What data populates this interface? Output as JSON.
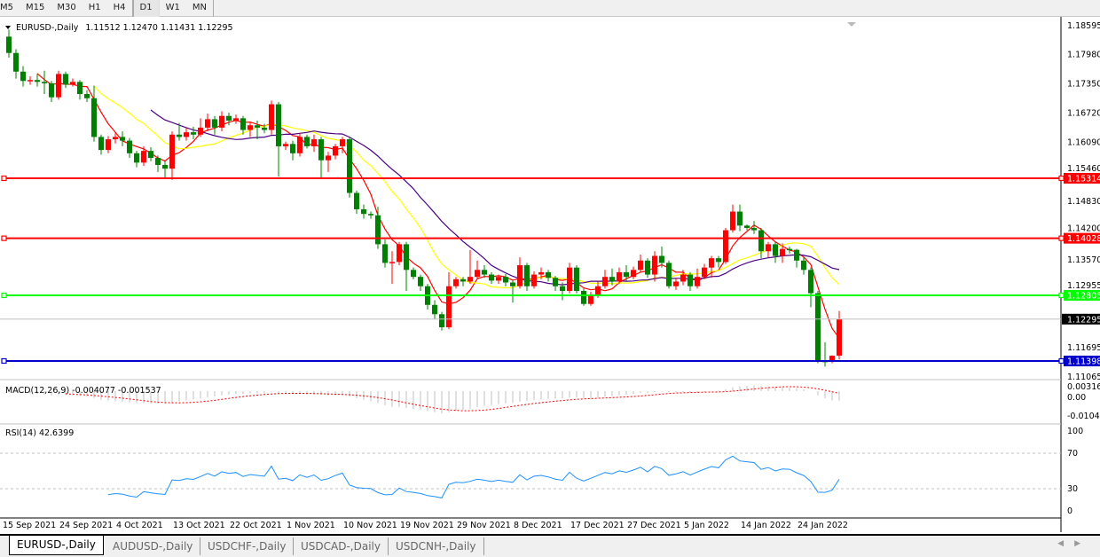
{
  "toolbar": {
    "timeframes": [
      "M5",
      "M15",
      "M30",
      "H1",
      "H4",
      "D1",
      "W1",
      "MN"
    ],
    "active": "D1"
  },
  "chart_data": {
    "type": "candlestick",
    "symbol_label": "EURUSD-,Daily",
    "ohlc_label": "1.11512 1.12470 1.11431 1.12295",
    "price_ticks": [
      "1.18595",
      "1.17980",
      "1.17350",
      "1.16720",
      "1.16090",
      "1.15460",
      "1.14830",
      "1.14200",
      "1.13570",
      "1.12955",
      "1.11695",
      "1.11065"
    ],
    "ylim": [
      1.11065,
      1.18595
    ],
    "colors": {
      "up": "#ff0000",
      "down": "#008000",
      "ma_fast": "#ff0000",
      "ma_mid": "#ffff00",
      "ma_slow": "#4b0082"
    },
    "hlines": [
      {
        "price": "1.15314",
        "color": "#ff0000"
      },
      {
        "price": "1.14028",
        "color": "#ff0000"
      },
      {
        "price": "1.12805",
        "color": "#00ff00"
      },
      {
        "price": "1.11398",
        "color": "#0000cd"
      },
      {
        "price": "1.12295",
        "color": "#000000",
        "kind": "bid"
      }
    ],
    "x_labels": [
      "15 Sep 2021",
      "24 Sep 2021",
      "4 Oct 2021",
      "13 Oct 2021",
      "22 Oct 2021",
      "1 Nov 2021",
      "10 Nov 2021",
      "19 Nov 2021",
      "29 Nov 2021",
      "8 Dec 2021",
      "17 Dec 2021",
      "27 Dec 2021",
      "5 Jan 2022",
      "14 Jan 2022",
      "24 Jan 2022"
    ],
    "ohlc": [
      [
        1.1835,
        1.185,
        1.179,
        1.18
      ],
      [
        1.18,
        1.1808,
        1.1745,
        1.176
      ],
      [
        1.176,
        1.1772,
        1.1728,
        1.174
      ],
      [
        1.174,
        1.175,
        1.1732,
        1.1742
      ],
      [
        1.1742,
        1.1755,
        1.1728,
        1.1738
      ],
      [
        1.1738,
        1.1762,
        1.1712,
        1.1735
      ],
      [
        1.1735,
        1.174,
        1.1695,
        1.1705
      ],
      [
        1.1705,
        1.1762,
        1.17,
        1.1755
      ],
      [
        1.1755,
        1.176,
        1.1725,
        1.1732
      ],
      [
        1.1732,
        1.1745,
        1.1728,
        1.1738
      ],
      [
        1.1738,
        1.1742,
        1.17,
        1.1712
      ],
      [
        1.1712,
        1.172,
        1.1695,
        1.1703
      ],
      [
        1.1703,
        1.173,
        1.161,
        1.162
      ],
      [
        1.162,
        1.1625,
        1.1582,
        1.1592
      ],
      [
        1.1592,
        1.1622,
        1.1585,
        1.1615
      ],
      [
        1.1615,
        1.1628,
        1.1606,
        1.162
      ],
      [
        1.162,
        1.1632,
        1.16,
        1.1612
      ],
      [
        1.1612,
        1.1618,
        1.1575,
        1.1585
      ],
      [
        1.1585,
        1.159,
        1.1555,
        1.1565
      ],
      [
        1.1565,
        1.16,
        1.1558,
        1.159
      ],
      [
        1.159,
        1.1598,
        1.1568,
        1.1575
      ],
      [
        1.1575,
        1.158,
        1.1545,
        1.156
      ],
      [
        1.156,
        1.1568,
        1.153,
        1.1552
      ],
      [
        1.1552,
        1.1632,
        1.1528,
        1.1625
      ],
      [
        1.1625,
        1.165,
        1.1612,
        1.162
      ],
      [
        1.162,
        1.164,
        1.1612,
        1.163
      ],
      [
        1.163,
        1.1642,
        1.1615,
        1.1625
      ],
      [
        1.1625,
        1.166,
        1.162,
        1.164
      ],
      [
        1.164,
        1.167,
        1.1632,
        1.1658
      ],
      [
        1.1658,
        1.1665,
        1.1625,
        1.164
      ],
      [
        1.164,
        1.1675,
        1.1632,
        1.1665
      ],
      [
        1.1665,
        1.1672,
        1.1645,
        1.1655
      ],
      [
        1.1655,
        1.1668,
        1.1648,
        1.166
      ],
      [
        1.166,
        1.1665,
        1.1625,
        1.1635
      ],
      [
        1.1635,
        1.1652,
        1.162,
        1.1645
      ],
      [
        1.1645,
        1.1655,
        1.1615,
        1.164
      ],
      [
        1.164,
        1.1648,
        1.1628,
        1.1635
      ],
      [
        1.1635,
        1.1698,
        1.1625,
        1.169
      ],
      [
        1.169,
        1.1695,
        1.1535,
        1.16
      ],
      [
        1.16,
        1.161,
        1.1592,
        1.1605
      ],
      [
        1.1605,
        1.1612,
        1.157,
        1.1585
      ],
      [
        1.1585,
        1.1628,
        1.1578,
        1.162
      ],
      [
        1.162,
        1.1625,
        1.1595,
        1.16
      ],
      [
        1.16,
        1.1625,
        1.1588,
        1.1615
      ],
      [
        1.1615,
        1.162,
        1.153,
        1.157
      ],
      [
        1.157,
        1.1588,
        1.1545,
        1.158
      ],
      [
        1.158,
        1.1605,
        1.1572,
        1.16
      ],
      [
        1.16,
        1.162,
        1.1585,
        1.1615
      ],
      [
        1.1615,
        1.162,
        1.149,
        1.15
      ],
      [
        1.15,
        1.1505,
        1.1455,
        1.1465
      ],
      [
        1.1465,
        1.1475,
        1.1445,
        1.1455
      ],
      [
        1.1455,
        1.146,
        1.1445,
        1.1452
      ],
      [
        1.1452,
        1.147,
        1.138,
        1.139
      ],
      [
        1.139,
        1.14,
        1.134,
        1.135
      ],
      [
        1.135,
        1.1375,
        1.1305,
        1.1352
      ],
      [
        1.1352,
        1.1395,
        1.1345,
        1.139
      ],
      [
        1.139,
        1.1395,
        1.129,
        1.1335
      ],
      [
        1.1335,
        1.134,
        1.1315,
        1.132
      ],
      [
        1.132,
        1.1325,
        1.129,
        1.13
      ],
      [
        1.13,
        1.1305,
        1.125,
        1.126
      ],
      [
        1.126,
        1.127,
        1.123,
        1.124
      ],
      [
        1.124,
        1.1245,
        1.1205,
        1.1212
      ],
      [
        1.1212,
        1.133,
        1.1208,
        1.13
      ],
      [
        1.13,
        1.132,
        1.1295,
        1.1315
      ],
      [
        1.1315,
        1.132,
        1.13,
        1.131
      ],
      [
        1.131,
        1.1378,
        1.1305,
        1.132
      ],
      [
        1.132,
        1.1355,
        1.1315,
        1.1335
      ],
      [
        1.1335,
        1.1345,
        1.1318,
        1.1325
      ],
      [
        1.1325,
        1.133,
        1.1305,
        1.1312
      ],
      [
        1.1312,
        1.1325,
        1.1305,
        1.132
      ],
      [
        1.132,
        1.1326,
        1.13,
        1.1308
      ],
      [
        1.1308,
        1.1312,
        1.1265,
        1.13
      ],
      [
        1.13,
        1.1362,
        1.1295,
        1.1345
      ],
      [
        1.1345,
        1.135,
        1.129,
        1.13
      ],
      [
        1.13,
        1.1332,
        1.1295,
        1.1325
      ],
      [
        1.1325,
        1.134,
        1.1315,
        1.133
      ],
      [
        1.133,
        1.1335,
        1.131,
        1.1318
      ],
      [
        1.1318,
        1.1322,
        1.129,
        1.13
      ],
      [
        1.13,
        1.1308,
        1.127,
        1.129
      ],
      [
        1.129,
        1.135,
        1.1285,
        1.134
      ],
      [
        1.134,
        1.1345,
        1.1285,
        1.129
      ],
      [
        1.129,
        1.1295,
        1.1258,
        1.1262
      ],
      [
        1.1262,
        1.1288,
        1.1258,
        1.128
      ],
      [
        1.128,
        1.131,
        1.1275,
        1.13
      ],
      [
        1.13,
        1.1335,
        1.1295,
        1.132
      ],
      [
        1.132,
        1.1338,
        1.1302,
        1.131
      ],
      [
        1.131,
        1.134,
        1.1305,
        1.133
      ],
      [
        1.133,
        1.1345,
        1.1312,
        1.132
      ],
      [
        1.132,
        1.1342,
        1.1315,
        1.1335
      ],
      [
        1.1335,
        1.1368,
        1.133,
        1.1355
      ],
      [
        1.1355,
        1.136,
        1.1318,
        1.1325
      ],
      [
        1.1325,
        1.1375,
        1.131,
        1.1365
      ],
      [
        1.1365,
        1.1385,
        1.134,
        1.135
      ],
      [
        1.135,
        1.1355,
        1.1295,
        1.13
      ],
      [
        1.13,
        1.1318,
        1.1292,
        1.131
      ],
      [
        1.131,
        1.1335,
        1.1302,
        1.1325
      ],
      [
        1.1325,
        1.133,
        1.129,
        1.13
      ],
      [
        1.13,
        1.1338,
        1.1295,
        1.132
      ],
      [
        1.132,
        1.1348,
        1.1315,
        1.134
      ],
      [
        1.134,
        1.1365,
        1.1318,
        1.136
      ],
      [
        1.136,
        1.1365,
        1.134,
        1.1352
      ],
      [
        1.1352,
        1.1425,
        1.1348,
        1.142
      ],
      [
        1.142,
        1.1475,
        1.1415,
        1.146
      ],
      [
        1.146,
        1.1475,
        1.1418,
        1.143
      ],
      [
        1.143,
        1.1432,
        1.142,
        1.1425
      ],
      [
        1.1425,
        1.144,
        1.1412,
        1.142
      ],
      [
        1.142,
        1.1425,
        1.136,
        1.1375
      ],
      [
        1.1375,
        1.1395,
        1.1362,
        1.139
      ],
      [
        1.139,
        1.1395,
        1.135,
        1.1365
      ],
      [
        1.1365,
        1.1392,
        1.135,
        1.138
      ],
      [
        1.138,
        1.1385,
        1.137,
        1.1378
      ],
      [
        1.1378,
        1.138,
        1.134,
        1.1355
      ],
      [
        1.1355,
        1.1362,
        1.1325,
        1.1335
      ],
      [
        1.1335,
        1.134,
        1.1255,
        1.1285
      ],
      [
        1.1285,
        1.129,
        1.1135,
        1.114
      ],
      [
        1.114,
        1.118,
        1.1128,
        1.1138
      ],
      [
        1.1138,
        1.1152,
        1.1135,
        1.1151
      ],
      [
        1.11512,
        1.1247,
        1.11431,
        1.12295
      ]
    ],
    "macd": {
      "label": "MACD(12,26,9) -0.004077 -0.001537",
      "ticks": [
        "0.003165",
        "0.00",
        "-0.01043"
      ],
      "hist_color": "#c0c0c0",
      "signal_color": "#ff0000"
    },
    "rsi": {
      "label": "RSI(14) 42.6399",
      "ticks": [
        "100",
        "70",
        "30",
        "0"
      ],
      "levels": [
        70,
        30
      ],
      "color": "#1e90ff"
    }
  },
  "tabs": [
    "EURUSD-,Daily",
    "AUDUSD-,Daily",
    "USDCHF-,Daily",
    "USDCAD-,Daily",
    "USDCNH-,Daily"
  ],
  "active_tab": "EURUSD-,Daily"
}
